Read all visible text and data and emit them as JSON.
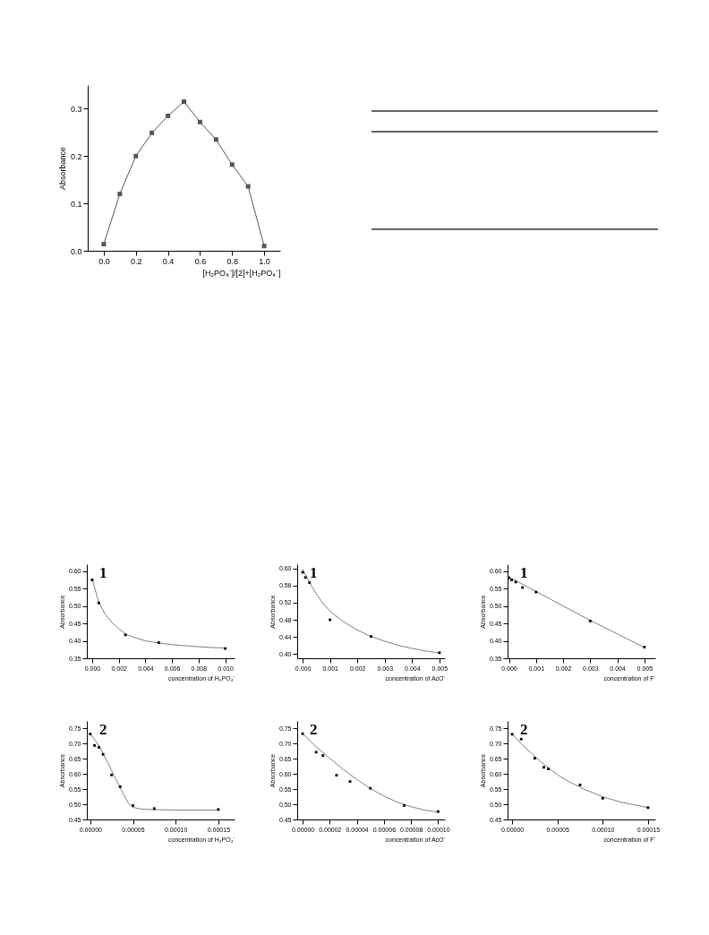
{
  "chart_data": [
    {
      "type": "line",
      "marker": "square",
      "xlabel": "[H₂PO₄⁻]/[2]+[H₂PO₄⁻]",
      "ylabel": "Absorbance",
      "x": [
        0,
        0.1,
        0.2,
        0.3,
        0.4,
        0.5,
        0.6,
        0.7,
        0.8,
        0.9,
        1.0
      ],
      "series": [
        {
          "color": "#555555",
          "values": [
            0.014,
            0.12,
            0.2,
            0.249,
            0.285,
            0.315,
            0.272,
            0.235,
            0.182,
            0.136,
            0.01
          ]
        }
      ],
      "xlim": [
        -0.1,
        1.1
      ],
      "xticks": [
        {
          "value": 0,
          "label": "0.0"
        },
        {
          "value": 0.2,
          "label": "0.2"
        },
        {
          "value": 0.4,
          "label": "0.4"
        },
        {
          "value": 0.6,
          "label": "0.6"
        },
        {
          "value": 0.8,
          "label": "0.8"
        },
        {
          "value": 1,
          "label": "1.0"
        }
      ],
      "ylim": [
        0,
        0.35
      ],
      "yticks": [
        {
          "value": 0,
          "label": "0.0"
        },
        {
          "value": 0.1,
          "label": "0.1"
        },
        {
          "value": 0.2,
          "label": "0.2"
        },
        {
          "value": 0.3,
          "label": "0.3"
        }
      ]
    },
    {
      "type": "scatter",
      "annotations": [
        "1"
      ],
      "xlabel": "concentration of H₂PO₄⁻",
      "ylabel": "Absorbance",
      "series": [
        {
          "type": "scatter",
          "marker": "square",
          "color": "#000000",
          "x": [
            0,
            0.0005,
            0.0025,
            0.005,
            0.01
          ],
          "values": [
            0.575,
            0.509,
            0.417,
            0.395,
            0.378
          ]
        },
        {
          "type": "line",
          "color": "#808080",
          "x": [
            0,
            0.0005,
            0.001,
            0.0015,
            0.002,
            0.0025,
            0.003,
            0.004,
            0.005,
            0.006,
            0.007,
            0.008,
            0.009,
            0.01
          ],
          "values": [
            0.578,
            0.51,
            0.475,
            0.452,
            0.435,
            0.42,
            0.412,
            0.4,
            0.394,
            0.389,
            0.386,
            0.383,
            0.381,
            0.379
          ]
        }
      ],
      "xlim": [
        -0.0004,
        0.0107
      ],
      "xticks": [
        {
          "value": 0,
          "label": "0.000"
        },
        {
          "value": 0.002,
          "label": "0.002"
        },
        {
          "value": 0.004,
          "label": "0.004"
        },
        {
          "value": 0.006,
          "label": "0.006"
        },
        {
          "value": 0.008,
          "label": "0.008"
        },
        {
          "value": 0.01,
          "label": "0.010"
        }
      ],
      "ylim": [
        0.35,
        0.62
      ],
      "yticks": [
        {
          "value": 0.35,
          "label": "0.35"
        },
        {
          "value": 0.4,
          "label": "0.40"
        },
        {
          "value": 0.45,
          "label": "0.45"
        },
        {
          "value": 0.5,
          "label": "0.50"
        },
        {
          "value": 0.55,
          "label": "0.55"
        },
        {
          "value": 0.6,
          "label": "0.60"
        }
      ]
    },
    {
      "type": "scatter",
      "annotations": [
        "1"
      ],
      "xlabel": "concentration of AcO⁻",
      "ylabel": "Absorbance",
      "series": [
        {
          "type": "scatter",
          "marker": "square",
          "color": "#000000",
          "x": [
            0,
            0.0001,
            0.00025,
            0.001,
            0.0025,
            0.005
          ],
          "values": [
            0.591,
            0.579,
            0.567,
            0.48,
            0.441,
            0.403
          ]
        },
        {
          "type": "line",
          "color": "#808080",
          "x": [
            0,
            0.00025,
            0.0005,
            0.00075,
            0.001,
            0.0015,
            0.002,
            0.0025,
            0.003,
            0.0035,
            0.004,
            0.0045,
            0.005
          ],
          "values": [
            0.598,
            0.567,
            0.54,
            0.518,
            0.5,
            0.475,
            0.456,
            0.441,
            0.43,
            0.42,
            0.413,
            0.407,
            0.402
          ]
        }
      ],
      "xlim": [
        -0.0002,
        0.0052
      ],
      "xticks": [
        {
          "value": 0,
          "label": "0.000"
        },
        {
          "value": 0.001,
          "label": "0.001"
        },
        {
          "value": 0.002,
          "label": "0.002"
        },
        {
          "value": 0.003,
          "label": "0.003"
        },
        {
          "value": 0.004,
          "label": "0.004"
        },
        {
          "value": 0.005,
          "label": "0.005"
        }
      ],
      "ylim": [
        0.39,
        0.61
      ],
      "yticks": [
        {
          "value": 0.4,
          "label": "0.40"
        },
        {
          "value": 0.44,
          "label": "0.44"
        },
        {
          "value": 0.48,
          "label": "0.48"
        },
        {
          "value": 0.52,
          "label": "0.52"
        },
        {
          "value": 0.56,
          "label": "0.56"
        },
        {
          "value": 0.6,
          "label": "0.60"
        }
      ]
    },
    {
      "type": "scatter",
      "annotations": [
        "1"
      ],
      "xlabel": "concentration of F⁻",
      "ylabel": "Absorbance",
      "series": [
        {
          "type": "scatter",
          "marker": "square",
          "color": "#000000",
          "x": [
            0,
            0.0001,
            0.00025,
            0.0005,
            0.001,
            0.003,
            0.005
          ],
          "values": [
            0.581,
            0.575,
            0.569,
            0.553,
            0.54,
            0.457,
            0.382
          ]
        },
        {
          "type": "line",
          "color": "#808080",
          "x": [
            0,
            0.001,
            0.002,
            0.003,
            0.004,
            0.005
          ],
          "values": [
            0.583,
            0.542,
            0.5,
            0.459,
            0.42,
            0.381
          ]
        }
      ],
      "xlim": [
        -5e-05,
        0.0054
      ],
      "xticks": [
        {
          "value": 0,
          "label": "0.000"
        },
        {
          "value": 0.001,
          "label": "0.001"
        },
        {
          "value": 0.002,
          "label": "0.002"
        },
        {
          "value": 0.003,
          "label": "0.003"
        },
        {
          "value": 0.004,
          "label": "0.004"
        },
        {
          "value": 0.005,
          "label": "0.005"
        }
      ],
      "ylim": [
        0.35,
        0.62
      ],
      "yticks": [
        {
          "value": 0.35,
          "label": "0.35"
        },
        {
          "value": 0.4,
          "label": "0.40"
        },
        {
          "value": 0.45,
          "label": "0.45"
        },
        {
          "value": 0.5,
          "label": "0.50"
        },
        {
          "value": 0.55,
          "label": "0.55"
        },
        {
          "value": 0.6,
          "label": "0.60"
        }
      ]
    },
    {
      "type": "scatter",
      "annotations": [
        "2"
      ],
      "xlabel": "concentration of H₂PO₄⁻",
      "ylabel": "Absorbance",
      "series": [
        {
          "type": "scatter",
          "marker": "square",
          "color": "#000000",
          "x": [
            0,
            5e-06,
            1e-05,
            1.5e-05,
            2.5e-05,
            3.5e-05,
            5e-05,
            7.5e-05,
            0.00015
          ],
          "values": [
            0.732,
            0.694,
            0.688,
            0.665,
            0.597,
            0.558,
            0.496,
            0.486,
            0.483
          ]
        },
        {
          "type": "line",
          "color": "#808080",
          "x": [
            0,
            1e-05,
            2e-05,
            3e-05,
            4e-05,
            4.5e-05,
            5e-05,
            6e-05,
            8e-05,
            0.0001,
            0.00015
          ],
          "values": [
            0.733,
            0.695,
            0.64,
            0.583,
            0.527,
            0.502,
            0.49,
            0.484,
            0.482,
            0.481,
            0.481
          ]
        }
      ],
      "xlim": [
        -4e-06,
        0.000169
      ],
      "xticks": [
        {
          "value": 0,
          "label": "0.00000"
        },
        {
          "value": 5e-05,
          "label": "0.00005"
        },
        {
          "value": 0.0001,
          "label": "0.00010"
        },
        {
          "value": 0.00015,
          "label": "0.00015"
        }
      ],
      "ylim": [
        0.45,
        0.775
      ],
      "yticks": [
        {
          "value": 0.45,
          "label": "0.45"
        },
        {
          "value": 0.5,
          "label": "0.50"
        },
        {
          "value": 0.55,
          "label": "0.55"
        },
        {
          "value": 0.6,
          "label": "0.60"
        },
        {
          "value": 0.65,
          "label": "0.65"
        },
        {
          "value": 0.7,
          "label": "0.70"
        },
        {
          "value": 0.75,
          "label": "0.75"
        }
      ]
    },
    {
      "type": "scatter",
      "annotations": [
        "2"
      ],
      "xlabel": "concentration of AcO⁻",
      "ylabel": "Absorbance",
      "series": [
        {
          "type": "scatter",
          "marker": "square",
          "color": "#000000",
          "x": [
            0,
            1e-05,
            1.5e-05,
            2.5e-05,
            3.5e-05,
            5e-05,
            7.5e-05,
            0.0001
          ],
          "values": [
            0.733,
            0.672,
            0.661,
            0.596,
            0.575,
            0.553,
            0.496,
            0.476
          ]
        },
        {
          "type": "line",
          "color": "#808080",
          "x": [
            0,
            1e-05,
            2e-05,
            3e-05,
            4e-05,
            5e-05,
            6e-05,
            7e-05,
            8e-05,
            9e-05,
            0.0001
          ],
          "values": [
            0.733,
            0.69,
            0.652,
            0.615,
            0.582,
            0.552,
            0.527,
            0.507,
            0.492,
            0.481,
            0.474
          ]
        }
      ],
      "xlim": [
        -4e-06,
        0.000105
      ],
      "xticks": [
        {
          "value": 0,
          "label": "0.00000"
        },
        {
          "value": 2e-05,
          "label": "0.00002"
        },
        {
          "value": 4e-05,
          "label": "0.00004"
        },
        {
          "value": 6e-05,
          "label": "0.00006"
        },
        {
          "value": 8e-05,
          "label": "0.00008"
        },
        {
          "value": 0.0001,
          "label": "0.00010"
        }
      ],
      "ylim": [
        0.45,
        0.775
      ],
      "yticks": [
        {
          "value": 0.45,
          "label": "0.45"
        },
        {
          "value": 0.5,
          "label": "0.50"
        },
        {
          "value": 0.55,
          "label": "0.55"
        },
        {
          "value": 0.6,
          "label": "0.60"
        },
        {
          "value": 0.65,
          "label": "0.65"
        },
        {
          "value": 0.7,
          "label": "0.70"
        },
        {
          "value": 0.75,
          "label": "0.75"
        }
      ]
    },
    {
      "type": "scatter",
      "annotations": [
        "2"
      ],
      "xlabel": "concentration of F⁻",
      "ylabel": "Absorbance",
      "series": [
        {
          "type": "scatter",
          "marker": "square",
          "color": "#000000",
          "x": [
            0,
            1e-05,
            2.5e-05,
            3.5e-05,
            4e-05,
            7.5e-05,
            0.0001,
            0.00015
          ],
          "values": [
            0.731,
            0.715,
            0.652,
            0.622,
            0.617,
            0.564,
            0.52,
            0.489
          ]
        },
        {
          "type": "line",
          "color": "#808080",
          "x": [
            0,
            1e-05,
            2e-05,
            3e-05,
            4e-05,
            5e-05,
            6e-05,
            8e-05,
            0.0001,
            0.00012,
            0.00015
          ],
          "values": [
            0.733,
            0.7,
            0.672,
            0.645,
            0.62,
            0.598,
            0.579,
            0.549,
            0.525,
            0.507,
            0.489
          ]
        }
      ],
      "xlim": [
        -5e-06,
        0.000158
      ],
      "xticks": [
        {
          "value": 0,
          "label": "0.00000"
        },
        {
          "value": 5e-05,
          "label": "0.00005"
        },
        {
          "value": 0.0001,
          "label": "0.00010"
        },
        {
          "value": 0.00015,
          "label": "0.00015"
        }
      ],
      "ylim": [
        0.45,
        0.775
      ],
      "yticks": [
        {
          "value": 0.45,
          "label": "0.45"
        },
        {
          "value": 0.5,
          "label": "0.50"
        },
        {
          "value": 0.55,
          "label": "0.55"
        },
        {
          "value": 0.6,
          "label": "0.60"
        },
        {
          "value": 0.65,
          "label": "0.65"
        },
        {
          "value": 0.7,
          "label": "0.70"
        },
        {
          "value": 0.75,
          "label": "0.75"
        }
      ]
    }
  ]
}
